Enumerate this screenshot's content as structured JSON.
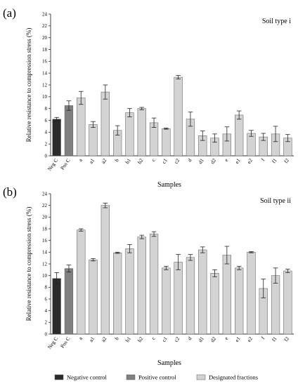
{
  "chart_data": [
    {
      "type": "bar",
      "panel_label": "(a)",
      "title": "Soil type i",
      "xlabel": "Samples",
      "ylabel": "Relative resistance to compression stress (%)",
      "ylim": [
        0,
        24
      ],
      "yticks": [
        0,
        2,
        4,
        6,
        8,
        10,
        12,
        14,
        16,
        18,
        20,
        22,
        24
      ],
      "categories": [
        "Neg C",
        "Pos C",
        "a",
        "a1",
        "a2",
        "b",
        "b1",
        "b2",
        "c",
        "c1",
        "c2",
        "d",
        "d1",
        "d2",
        "e",
        "e1",
        "e2",
        "f",
        "f1",
        "f2"
      ],
      "values": [
        6.2,
        8.5,
        9.8,
        5.3,
        10.8,
        4.3,
        7.3,
        8.0,
        5.6,
        4.6,
        13.3,
        6.2,
        3.4,
        3.0,
        3.7,
        6.9,
        3.8,
        3.2,
        3.7,
        3.0
      ],
      "errors": [
        0.3,
        0.8,
        1.1,
        0.5,
        1.2,
        0.8,
        0.7,
        0.2,
        0.8,
        0.1,
        0.3,
        1.2,
        0.8,
        0.7,
        1.2,
        0.7,
        0.5,
        0.6,
        1.3,
        0.6
      ],
      "groups": [
        "neg",
        "pos",
        "des",
        "des",
        "des",
        "des",
        "des",
        "des",
        "des",
        "des",
        "des",
        "des",
        "des",
        "des",
        "des",
        "des",
        "des",
        "des",
        "des",
        "des"
      ]
    },
    {
      "type": "bar",
      "panel_label": "(b)",
      "title": "Soil type ii",
      "xlabel": "Samples",
      "ylabel": "Relative resistance to compression stress (%)",
      "ylim": [
        0,
        24
      ],
      "yticks": [
        0,
        2,
        4,
        6,
        8,
        10,
        12,
        14,
        16,
        18,
        20,
        22,
        24
      ],
      "categories": [
        "Neg C",
        "Pos C",
        "a",
        "a1",
        "a2",
        "b",
        "b1",
        "b2",
        "c",
        "c1",
        "c2",
        "d",
        "d1",
        "d2",
        "e",
        "e1",
        "e2",
        "f",
        "f1",
        "f2"
      ],
      "values": [
        9.5,
        11.2,
        17.8,
        12.7,
        22.0,
        13.9,
        14.6,
        16.6,
        17.1,
        11.3,
        12.3,
        13.1,
        14.4,
        10.4,
        13.5,
        11.3,
        14.0,
        7.8,
        10.0,
        10.8
      ],
      "errors": [
        1.0,
        0.6,
        0.2,
        0.2,
        0.4,
        0.1,
        0.7,
        0.3,
        0.4,
        0.3,
        1.3,
        0.5,
        0.5,
        0.6,
        1.5,
        0.3,
        0.1,
        1.6,
        1.3,
        0.3
      ],
      "groups": [
        "neg",
        "pos",
        "des",
        "des",
        "des",
        "des",
        "des",
        "des",
        "des",
        "des",
        "des",
        "des",
        "des",
        "des",
        "des",
        "des",
        "des",
        "des",
        "des",
        "des"
      ]
    }
  ],
  "legend": [
    {
      "key": "neg",
      "label": "Negative control",
      "color": "#2b2b2b"
    },
    {
      "key": "pos",
      "label": "Positive control",
      "color": "#808080"
    },
    {
      "key": "des",
      "label": "Designated fractions",
      "color": "#d3d3d3"
    }
  ],
  "colors": {
    "neg": "#2b2b2b",
    "pos": "#808080",
    "des": "#d3d3d3",
    "axis": "#333333"
  }
}
